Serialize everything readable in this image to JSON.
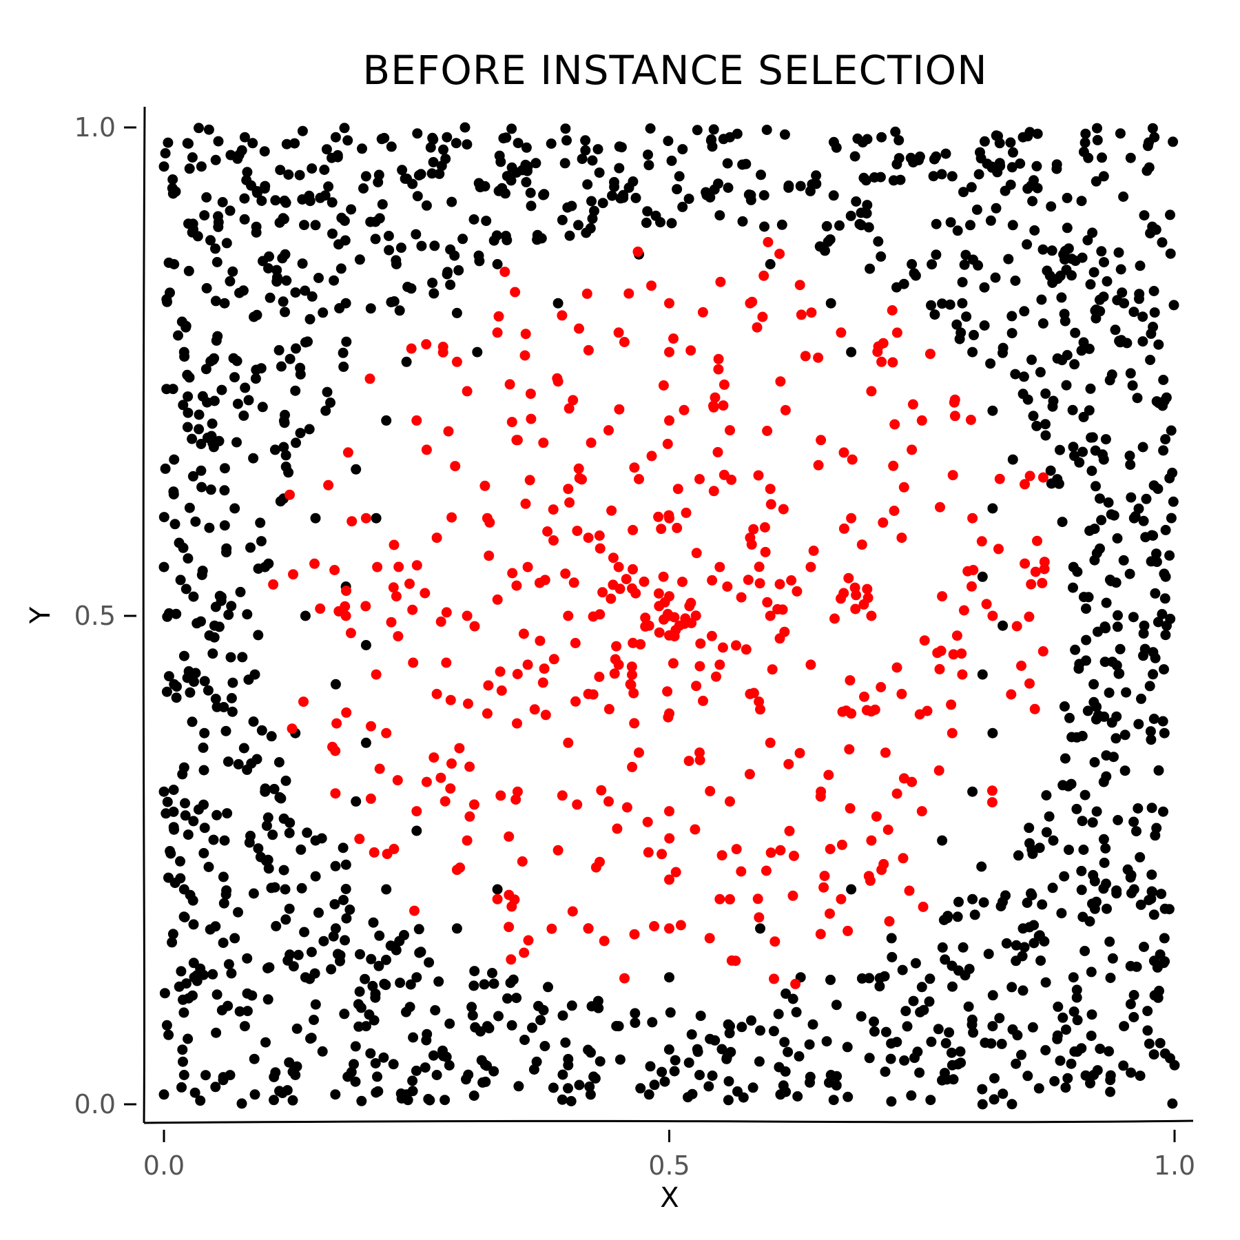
{
  "chart_data": {
    "type": "scatter",
    "title": "BEFORE INSTANCE SELECTION",
    "xlabel": "X",
    "ylabel": "Y",
    "xlim": [
      0.0,
      1.0
    ],
    "ylim": [
      0.0,
      1.0
    ],
    "xticks": [
      "0.0",
      "0.5",
      "1.0"
    ],
    "yticks": [
      "0.0",
      "0.5",
      "1.0"
    ],
    "grid": false,
    "legend": "none",
    "style": "xkcd",
    "series": [
      {
        "color": "#000000",
        "count_approx": 1500,
        "distribution": "uniform over [0,1]x[0,1], excluding points within ~0.4 of (0.5, 0.5)",
        "points": [
          [
            0.08,
            0.99
          ],
          [
            0.17,
            0.99
          ],
          [
            0.28,
            0.99
          ],
          [
            0.56,
            0.99
          ],
          [
            0.71,
            0.99
          ],
          [
            0.85,
            0.99
          ],
          [
            0.98,
            0.99
          ],
          [
            0.0,
            0.96
          ],
          [
            0.1,
            0.94
          ],
          [
            0.2,
            0.95
          ],
          [
            0.36,
            0.96
          ],
          [
            0.51,
            0.95
          ],
          [
            0.63,
            0.94
          ],
          [
            0.78,
            0.95
          ],
          [
            0.93,
            0.95
          ],
          [
            0.04,
            0.91
          ],
          [
            0.15,
            0.9
          ],
          [
            0.26,
            0.92
          ],
          [
            0.41,
            0.9
          ],
          [
            0.55,
            0.91
          ],
          [
            0.69,
            0.9
          ],
          [
            0.84,
            0.9
          ],
          [
            0.97,
            0.91
          ],
          [
            0.01,
            0.86
          ],
          [
            0.12,
            0.87
          ],
          [
            0.23,
            0.86
          ],
          [
            0.33,
            0.86
          ],
          [
            0.47,
            0.87
          ],
          [
            0.6,
            0.86
          ],
          [
            0.74,
            0.86
          ],
          [
            0.89,
            0.87
          ],
          [
            0.06,
            0.82
          ],
          [
            0.18,
            0.82
          ],
          [
            0.29,
            0.81
          ],
          [
            0.39,
            0.82
          ],
          [
            0.66,
            0.82
          ],
          [
            0.79,
            0.82
          ],
          [
            0.95,
            0.82
          ],
          [
            0.02,
            0.77
          ],
          [
            0.14,
            0.78
          ],
          [
            0.24,
            0.76
          ],
          [
            0.31,
            0.77
          ],
          [
            0.68,
            0.77
          ],
          [
            0.8,
            0.77
          ],
          [
            0.91,
            0.78
          ],
          [
            0.05,
            0.72
          ],
          [
            0.16,
            0.71
          ],
          [
            0.22,
            0.7
          ],
          [
            0.82,
            0.71
          ],
          [
            0.88,
            0.72
          ],
          [
            0.99,
            0.72
          ],
          [
            0.01,
            0.66
          ],
          [
            0.11,
            0.67
          ],
          [
            0.19,
            0.65
          ],
          [
            0.84,
            0.66
          ],
          [
            0.93,
            0.66
          ],
          [
            0.07,
            0.61
          ],
          [
            0.15,
            0.6
          ],
          [
            0.21,
            0.6
          ],
          [
            0.82,
            0.61
          ],
          [
            0.96,
            0.6
          ],
          [
            0.0,
            0.55
          ],
          [
            0.1,
            0.55
          ],
          [
            0.18,
            0.53
          ],
          [
            0.81,
            0.54
          ],
          [
            0.9,
            0.55
          ],
          [
            0.05,
            0.49
          ],
          [
            0.14,
            0.5
          ],
          [
            0.2,
            0.47
          ],
          [
            0.83,
            0.49
          ],
          [
            0.97,
            0.49
          ],
          [
            0.01,
            0.43
          ],
          [
            0.09,
            0.44
          ],
          [
            0.17,
            0.43
          ],
          [
            0.81,
            0.44
          ],
          [
            0.92,
            0.43
          ],
          [
            0.04,
            0.38
          ],
          [
            0.13,
            0.38
          ],
          [
            0.2,
            0.37
          ],
          [
            0.82,
            0.38
          ],
          [
            0.99,
            0.38
          ],
          [
            0.0,
            0.32
          ],
          [
            0.1,
            0.32
          ],
          [
            0.19,
            0.31
          ],
          [
            0.8,
            0.32
          ],
          [
            0.93,
            0.33
          ],
          [
            0.06,
            0.27
          ],
          [
            0.15,
            0.27
          ],
          [
            0.25,
            0.28
          ],
          [
            0.77,
            0.27
          ],
          [
            0.88,
            0.27
          ],
          [
            0.02,
            0.22
          ],
          [
            0.12,
            0.22
          ],
          [
            0.22,
            0.22
          ],
          [
            0.33,
            0.22
          ],
          [
            0.68,
            0.22
          ],
          [
            0.8,
            0.21
          ],
          [
            0.96,
            0.22
          ],
          [
            0.07,
            0.17
          ],
          [
            0.17,
            0.18
          ],
          [
            0.29,
            0.18
          ],
          [
            0.42,
            0.18
          ],
          [
            0.59,
            0.18
          ],
          [
            0.72,
            0.17
          ],
          [
            0.85,
            0.18
          ],
          [
            0.99,
            0.17
          ],
          [
            0.03,
            0.13
          ],
          [
            0.14,
            0.13
          ],
          [
            0.25,
            0.13
          ],
          [
            0.38,
            0.12
          ],
          [
            0.5,
            0.13
          ],
          [
            0.63,
            0.13
          ],
          [
            0.75,
            0.12
          ],
          [
            0.9,
            0.13
          ],
          [
            0.08,
            0.08
          ],
          [
            0.2,
            0.08
          ],
          [
            0.32,
            0.08
          ],
          [
            0.45,
            0.08
          ],
          [
            0.56,
            0.08
          ],
          [
            0.69,
            0.09
          ],
          [
            0.82,
            0.08
          ],
          [
            0.95,
            0.08
          ],
          [
            0.02,
            0.03
          ],
          [
            0.13,
            0.03
          ],
          [
            0.27,
            0.03
          ],
          [
            0.4,
            0.04
          ],
          [
            0.53,
            0.03
          ],
          [
            0.66,
            0.03
          ],
          [
            0.78,
            0.04
          ],
          [
            0.92,
            0.03
          ],
          [
            0.0,
            0.01
          ],
          [
            0.09,
            0.01
          ],
          [
            0.24,
            0.01
          ],
          [
            0.48,
            0.01
          ],
          [
            0.61,
            0.01
          ],
          [
            0.81,
            0.0
          ],
          [
            1.0,
            0.04
          ]
        ]
      },
      {
        "color": "#ff0000",
        "count_approx": 500,
        "distribution": "dense cluster centred at (0.5, 0.5), radius ~0.4",
        "points": [
          [
            0.5,
            0.5
          ],
          [
            0.49,
            0.51
          ],
          [
            0.51,
            0.49
          ],
          [
            0.52,
            0.51
          ],
          [
            0.48,
            0.49
          ],
          [
            0.5,
            0.52
          ],
          [
            0.5,
            0.48
          ],
          [
            0.45,
            0.55
          ],
          [
            0.55,
            0.55
          ],
          [
            0.45,
            0.45
          ],
          [
            0.55,
            0.45
          ],
          [
            0.4,
            0.5
          ],
          [
            0.6,
            0.5
          ],
          [
            0.5,
            0.6
          ],
          [
            0.5,
            0.4
          ],
          [
            0.42,
            0.58
          ],
          [
            0.58,
            0.58
          ],
          [
            0.42,
            0.42
          ],
          [
            0.58,
            0.42
          ],
          [
            0.36,
            0.55
          ],
          [
            0.64,
            0.55
          ],
          [
            0.36,
            0.45
          ],
          [
            0.64,
            0.45
          ],
          [
            0.47,
            0.64
          ],
          [
            0.53,
            0.64
          ],
          [
            0.47,
            0.36
          ],
          [
            0.53,
            0.36
          ],
          [
            0.4,
            0.63
          ],
          [
            0.6,
            0.63
          ],
          [
            0.4,
            0.37
          ],
          [
            0.6,
            0.37
          ],
          [
            0.32,
            0.6
          ],
          [
            0.68,
            0.6
          ],
          [
            0.32,
            0.4
          ],
          [
            0.68,
            0.4
          ],
          [
            0.44,
            0.69
          ],
          [
            0.56,
            0.69
          ],
          [
            0.44,
            0.31
          ],
          [
            0.56,
            0.31
          ],
          [
            0.3,
            0.5
          ],
          [
            0.7,
            0.5
          ],
          [
            0.5,
            0.7
          ],
          [
            0.5,
            0.3
          ],
          [
            0.35,
            0.68
          ],
          [
            0.65,
            0.68
          ],
          [
            0.35,
            0.32
          ],
          [
            0.65,
            0.32
          ],
          [
            0.27,
            0.58
          ],
          [
            0.73,
            0.58
          ],
          [
            0.27,
            0.42
          ],
          [
            0.73,
            0.42
          ],
          [
            0.39,
            0.74
          ],
          [
            0.61,
            0.74
          ],
          [
            0.39,
            0.26
          ],
          [
            0.61,
            0.26
          ],
          [
            0.23,
            0.52
          ],
          [
            0.77,
            0.52
          ],
          [
            0.5,
            0.77
          ],
          [
            0.5,
            0.23
          ],
          [
            0.3,
            0.73
          ],
          [
            0.7,
            0.73
          ],
          [
            0.3,
            0.27
          ],
          [
            0.7,
            0.27
          ],
          [
            0.21,
            0.44
          ],
          [
            0.79,
            0.44
          ],
          [
            0.45,
            0.79
          ],
          [
            0.55,
            0.21
          ],
          [
            0.26,
            0.67
          ],
          [
            0.74,
            0.67
          ],
          [
            0.26,
            0.33
          ],
          [
            0.74,
            0.33
          ],
          [
            0.2,
            0.6
          ],
          [
            0.8,
            0.6
          ],
          [
            0.46,
            0.83
          ],
          [
            0.54,
            0.17
          ],
          [
            0.33,
            0.79
          ],
          [
            0.67,
            0.79
          ],
          [
            0.33,
            0.21
          ],
          [
            0.67,
            0.21
          ],
          [
            0.22,
            0.38
          ],
          [
            0.78,
            0.38
          ],
          [
            0.58,
            0.82
          ],
          [
            0.42,
            0.18
          ],
          [
            0.25,
            0.7
          ],
          [
            0.75,
            0.7
          ],
          [
            0.25,
            0.3
          ],
          [
            0.75,
            0.3
          ],
          [
            0.18,
            0.5
          ],
          [
            0.82,
            0.5
          ],
          [
            0.5,
            0.82
          ],
          [
            0.5,
            0.18
          ],
          [
            0.29,
            0.76
          ],
          [
            0.71,
            0.76
          ],
          [
            0.29,
            0.24
          ],
          [
            0.71,
            0.24
          ]
        ]
      }
    ]
  }
}
